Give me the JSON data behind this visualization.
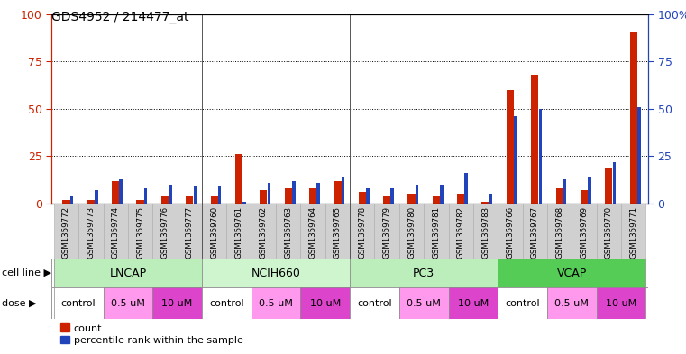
{
  "title": "GDS4952 / 214477_at",
  "samples": [
    "GSM1359772",
    "GSM1359773",
    "GSM1359774",
    "GSM1359775",
    "GSM1359776",
    "GSM1359777",
    "GSM1359760",
    "GSM1359761",
    "GSM1359762",
    "GSM1359763",
    "GSM1359764",
    "GSM1359765",
    "GSM1359778",
    "GSM1359779",
    "GSM1359780",
    "GSM1359781",
    "GSM1359782",
    "GSM1359783",
    "GSM1359766",
    "GSM1359767",
    "GSM1359768",
    "GSM1359769",
    "GSM1359770",
    "GSM1359771"
  ],
  "red_values": [
    2,
    2,
    12,
    2,
    4,
    4,
    4,
    26,
    7,
    8,
    8,
    12,
    6,
    4,
    5,
    4,
    5,
    1,
    60,
    68,
    8,
    7,
    19,
    91
  ],
  "blue_values": [
    4,
    7,
    13,
    8,
    10,
    9,
    9,
    1,
    11,
    12,
    11,
    14,
    8,
    8,
    10,
    10,
    16,
    5,
    46,
    50,
    13,
    14,
    22,
    51
  ],
  "cell_lines": [
    {
      "label": "LNCAP",
      "start": 0,
      "end": 6,
      "color": "#bbeebb"
    },
    {
      "label": "NCIH660",
      "start": 6,
      "end": 12,
      "color": "#cef5ce"
    },
    {
      "label": "PC3",
      "start": 12,
      "end": 18,
      "color": "#bbeebb"
    },
    {
      "label": "VCAP",
      "start": 18,
      "end": 24,
      "color": "#55cc55"
    }
  ],
  "doses": [
    {
      "label": "control",
      "start": 0,
      "end": 2,
      "color": "#ffffff"
    },
    {
      "label": "0.5 uM",
      "start": 2,
      "end": 4,
      "color": "#ff99ee"
    },
    {
      "label": "10 uM",
      "start": 4,
      "end": 6,
      "color": "#dd44cc"
    },
    {
      "label": "control",
      "start": 6,
      "end": 8,
      "color": "#ffffff"
    },
    {
      "label": "0.5 uM",
      "start": 8,
      "end": 10,
      "color": "#ff99ee"
    },
    {
      "label": "10 uM",
      "start": 10,
      "end": 12,
      "color": "#dd44cc"
    },
    {
      "label": "control",
      "start": 12,
      "end": 14,
      "color": "#ffffff"
    },
    {
      "label": "0.5 uM",
      "start": 14,
      "end": 16,
      "color": "#ff99ee"
    },
    {
      "label": "10 uM",
      "start": 16,
      "end": 18,
      "color": "#dd44cc"
    },
    {
      "label": "control",
      "start": 18,
      "end": 20,
      "color": "#ffffff"
    },
    {
      "label": "0.5 uM",
      "start": 20,
      "end": 22,
      "color": "#ff99ee"
    },
    {
      "label": "10 uM",
      "start": 22,
      "end": 24,
      "color": "#dd44cc"
    }
  ],
  "ylim": [
    0,
    100
  ],
  "yticks": [
    0,
    25,
    50,
    75,
    100
  ],
  "bar_color_red": "#cc2200",
  "bar_color_blue": "#2244bb",
  "bg_color": "#ffffff",
  "left_axis_color": "#cc2200",
  "right_axis_color": "#2244bb",
  "label_bg": "#d0d0d0",
  "group_separators": [
    6,
    12,
    18
  ]
}
